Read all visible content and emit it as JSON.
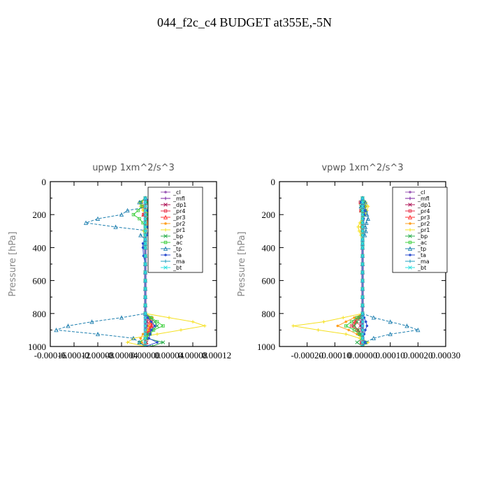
{
  "title": "044_f2c_c4  BUDGET at355E,-5N",
  "legend_entries": [
    "_cl",
    "_mfl",
    "_dp1",
    "_pr4",
    "_pr3",
    "_pr2",
    "_pr1",
    "_bp",
    "_ac",
    "_tp",
    "_ta",
    "_ma",
    "_bt"
  ],
  "colors": {
    "_cl": "#9b59b6",
    "_mfl": "#7a1fa2",
    "_dp1": "#b0185a",
    "_pr4": "#e8324a",
    "_pr3": "#ff3030",
    "_pr2": "#ffa020",
    "_pr1": "#f5e020",
    "_bp": "#2fb050",
    "_ac": "#40d040",
    "_tp": "#2080b0",
    "_ta": "#3050d0",
    "_ma": "#20a0c0",
    "_bt": "#30e0e0"
  },
  "chart_data": [
    {
      "type": "line",
      "title": "upwp   1xm^2/s^3",
      "ylabel": "Pressure [hPa]",
      "xlim": [
        -0.00016,
        0.00012
      ],
      "ylim": [
        1000,
        0
      ],
      "xticks": [
        "-0.00016",
        "-0.00012",
        "-0.00008",
        "-0.00004",
        "0.00000",
        "0.00004",
        "0.00008",
        "0.00012"
      ],
      "yticks": [
        "0",
        "200",
        "400",
        "600",
        "800",
        "1000"
      ],
      "legend": "top-right",
      "pressure": [
        100,
        125,
        150,
        175,
        200,
        225,
        250,
        275,
        300,
        325,
        350,
        375,
        400,
        450,
        500,
        550,
        600,
        650,
        700,
        750,
        800,
        825,
        850,
        875,
        900,
        925,
        950,
        975,
        1000
      ],
      "series": [
        {
          "name": "_cl",
          "values": [
            0,
            0,
            0,
            0,
            0,
            0,
            0,
            0,
            0,
            0,
            0,
            0,
            0,
            0,
            0,
            0,
            0,
            0,
            0,
            0,
            0,
            0,
            0,
            0,
            0,
            0,
            0,
            0,
            0
          ]
        },
        {
          "name": "_mfl",
          "values": [
            0,
            0,
            0,
            0,
            0,
            0,
            0,
            0,
            0,
            0,
            0,
            0,
            0,
            0,
            0,
            0,
            0,
            0,
            0,
            0,
            0,
            0,
            0,
            0,
            0,
            0,
            0,
            0,
            0
          ]
        },
        {
          "name": "_dp1",
          "values": [
            0,
            4e-06,
            -4e-06,
            3e-06,
            -2e-06,
            2e-06,
            0,
            0,
            0,
            0,
            0,
            0,
            0,
            0,
            0,
            0,
            0,
            0,
            0,
            0,
            0,
            4e-06,
            3e-06,
            4e-06,
            2e-06,
            3e-06,
            0,
            2e-06,
            0
          ]
        },
        {
          "name": "_pr4",
          "values": [
            0,
            8e-06,
            -4e-06,
            6e-06,
            -3e-06,
            4e-06,
            5e-06,
            2e-06,
            0,
            0,
            0,
            0,
            0,
            0,
            0,
            0,
            0,
            0,
            0,
            0,
            0,
            8e-06,
            1e-05,
            1.2e-05,
            6e-06,
            4e-06,
            2e-06,
            1e-06,
            0
          ]
        },
        {
          "name": "_pr3",
          "values": [
            0,
            6e-06,
            -3e-06,
            4e-06,
            -3e-06,
            3e-06,
            4e-06,
            2e-06,
            0,
            0,
            0,
            0,
            0,
            0,
            0,
            0,
            0,
            0,
            0,
            0,
            0,
            6e-06,
            8e-06,
            1e-05,
            5e-06,
            3e-06,
            2e-06,
            1e-06,
            0
          ]
        },
        {
          "name": "_pr2",
          "values": [
            0,
            -6e-06,
            -4e-06,
            -2e-06,
            6e-06,
            8e-06,
            4e-06,
            2e-06,
            0,
            0,
            0,
            0,
            0,
            0,
            0,
            0,
            0,
            0,
            0,
            0,
            0,
            1.2e-05,
            1e-05,
            6e-06,
            4e-06,
            -4e-06,
            -8e-06,
            -6e-06,
            0
          ]
        },
        {
          "name": "_pr1",
          "values": [
            0,
            -1e-05,
            -8e-06,
            -4e-06,
            1e-05,
            1.6e-05,
            1e-05,
            4e-06,
            -3e-06,
            0,
            0,
            0,
            0,
            0,
            0,
            0,
            0,
            0,
            0,
            0,
            0,
            4e-05,
            8e-05,
            0.0001,
            6e-05,
            2e-05,
            -2e-05,
            -3e-05,
            0
          ]
        },
        {
          "name": "_bp",
          "values": [
            0,
            3e-06,
            6e-06,
            2e-06,
            4e-06,
            2e-06,
            0,
            0,
            0,
            0,
            0,
            0,
            0,
            0,
            0,
            0,
            0,
            0,
            0,
            0,
            0,
            8e-06,
            1.6e-05,
            2e-05,
            1.2e-05,
            4e-06,
            2e-06,
            3e-05,
            1e-05
          ]
        },
        {
          "name": "_ac",
          "values": [
            0,
            -8e-06,
            -6e-06,
            -1.2e-05,
            -2e-05,
            -1e-05,
            -4e-06,
            0,
            0,
            0,
            0,
            0,
            0,
            0,
            0,
            0,
            0,
            0,
            0,
            0,
            0,
            1e-05,
            2e-05,
            3e-05,
            1.4e-05,
            8e-06,
            0,
            -1e-05,
            0
          ]
        },
        {
          "name": "_tp",
          "values": [
            0,
            -1e-05,
            1e-05,
            -3e-05,
            -4e-05,
            -8e-05,
            -0.0001,
            -5e-05,
            1e-05,
            -8e-06,
            0,
            0,
            0,
            0,
            0,
            0,
            0,
            0,
            0,
            0,
            0,
            -4e-05,
            -9e-05,
            -0.00013,
            -0.00015,
            -8e-05,
            -2e-05,
            -1e-05,
            0
          ]
        },
        {
          "name": "_ta",
          "values": [
            0,
            1.2e-05,
            6e-06,
            4e-06,
            8e-06,
            1e-05,
            6e-06,
            4e-06,
            6e-06,
            2e-06,
            0,
            -4e-06,
            -4e-06,
            -3e-06,
            0,
            0,
            0,
            0,
            0,
            0,
            0,
            4e-06,
            1e-05,
            1.6e-05,
            1e-05,
            8e-06,
            6e-06,
            2e-05,
            0
          ]
        },
        {
          "name": "_ma",
          "values": [
            0,
            0,
            0,
            0,
            0,
            0,
            0,
            0,
            0,
            0,
            0,
            0,
            0,
            0,
            0,
            0,
            0,
            0,
            0,
            0,
            0,
            0,
            0,
            0,
            0,
            0,
            0,
            0,
            0
          ]
        },
        {
          "name": "_bt",
          "values": [
            0,
            0,
            0,
            0,
            0,
            0,
            0,
            0,
            0,
            0,
            0,
            0,
            0,
            0,
            0,
            0,
            0,
            0,
            0,
            0,
            0,
            0,
            0,
            0,
            0,
            0,
            0,
            0,
            0
          ]
        }
      ]
    },
    {
      "type": "line",
      "title": "vpwp   1xm^2/s^3",
      "ylabel": "Pressure [hPa]",
      "xlim": [
        -0.0003,
        0.0003
      ],
      "ylim": [
        1000,
        0
      ],
      "xticks": [
        "-0.00020",
        "-0.00010",
        "0.00000",
        "0.00010",
        "0.00020",
        "0.00030"
      ],
      "yticks": [
        "0",
        "200",
        "400",
        "600",
        "800",
        "1000"
      ],
      "legend": "top-right",
      "pressure": [
        100,
        125,
        150,
        175,
        200,
        225,
        250,
        275,
        300,
        325,
        350,
        375,
        400,
        450,
        500,
        550,
        600,
        650,
        700,
        750,
        800,
        825,
        850,
        875,
        900,
        925,
        950,
        975,
        1000
      ],
      "series": [
        {
          "name": "_cl",
          "values": [
            0,
            0,
            0,
            0,
            0,
            0,
            0,
            0,
            0,
            0,
            0,
            0,
            0,
            0,
            0,
            0,
            0,
            0,
            0,
            0,
            0,
            0,
            0,
            0,
            0,
            0,
            0,
            0,
            0
          ]
        },
        {
          "name": "_mfl",
          "values": [
            0,
            0,
            0,
            0,
            0,
            0,
            0,
            0,
            0,
            0,
            0,
            0,
            0,
            0,
            0,
            0,
            0,
            0,
            0,
            0,
            0,
            0,
            0,
            0,
            0,
            0,
            0,
            0,
            0
          ]
        },
        {
          "name": "_dp1",
          "values": [
            0,
            -5e-06,
            4e-06,
            -4e-06,
            3e-06,
            0,
            0,
            0,
            0,
            0,
            0,
            0,
            0,
            0,
            0,
            0,
            0,
            0,
            0,
            0,
            0,
            -4e-06,
            -6e-06,
            -8e-06,
            -4e-06,
            -2e-06,
            0,
            -2e-06,
            0
          ]
        },
        {
          "name": "_pr4",
          "values": [
            0,
            -8e-06,
            6e-06,
            -6e-06,
            4e-06,
            0,
            0,
            0,
            0,
            0,
            0,
            0,
            0,
            0,
            0,
            0,
            0,
            0,
            0,
            0,
            0,
            -2e-05,
            -3e-05,
            -4e-05,
            -2e-05,
            -1e-05,
            0,
            -4e-06,
            0
          ]
        },
        {
          "name": "_pr3",
          "values": [
            0,
            -6e-06,
            5e-06,
            -5e-06,
            3e-06,
            0,
            0,
            0,
            0,
            0,
            0,
            0,
            0,
            0,
            0,
            0,
            0,
            0,
            0,
            0,
            0,
            -1.6e-05,
            -2.4e-05,
            -3e-05,
            -1.6e-05,
            -8e-06,
            0,
            -3e-06,
            0
          ]
        },
        {
          "name": "_pr2",
          "values": [
            0,
            8e-06,
            1.2e-05,
            1e-05,
            6e-06,
            0,
            -4e-06,
            -6e-06,
            -4e-06,
            0,
            0,
            0,
            0,
            0,
            0,
            0,
            0,
            0,
            0,
            0,
            0,
            -3e-05,
            -6e-05,
            -9e-05,
            -5e-05,
            -2e-05,
            0,
            1e-05,
            0
          ]
        },
        {
          "name": "_pr1",
          "values": [
            0,
            1.2e-05,
            2e-05,
            1.6e-05,
            1e-05,
            0,
            -1e-05,
            -1.6e-05,
            -1.2e-05,
            -6e-06,
            0,
            0,
            0,
            0,
            0,
            0,
            0,
            0,
            0,
            0,
            0,
            -7e-05,
            -0.00014,
            -0.00025,
            -0.00016,
            -6e-05,
            -1e-05,
            2e-05,
            0
          ]
        },
        {
          "name": "_bp",
          "values": [
            0,
            -4e-06,
            -6e-06,
            -4e-06,
            0,
            0,
            0,
            0,
            0,
            0,
            0,
            0,
            0,
            0,
            0,
            0,
            0,
            0,
            0,
            0,
            0,
            -1e-05,
            -2e-05,
            -3e-05,
            -1.6e-05,
            -8e-06,
            0,
            -2e-05,
            0
          ]
        },
        {
          "name": "_ac",
          "values": [
            0,
            4e-06,
            8e-06,
            6e-06,
            4e-06,
            0,
            0,
            0,
            0,
            0,
            0,
            0,
            0,
            0,
            0,
            0,
            0,
            0,
            0,
            0,
            0,
            -2e-05,
            -4e-05,
            -6e-05,
            -3e-05,
            -1.2e-05,
            0,
            1e-05,
            0
          ]
        },
        {
          "name": "_tp",
          "values": [
            0,
            1e-05,
            -6e-06,
            1.2e-05,
            1.6e-05,
            2e-05,
            1.4e-05,
            1e-05,
            1.2e-05,
            8e-06,
            0,
            0,
            0,
            0,
            0,
            0,
            0,
            0,
            0,
            0,
            0,
            4e-05,
            0.0001,
            0.00016,
            0.0002,
            0.0001,
            4e-05,
            1e-05,
            0
          ]
        },
        {
          "name": "_ta",
          "values": [
            0,
            -6e-06,
            4e-06,
            8e-06,
            6e-06,
            4e-06,
            2e-06,
            0,
            0,
            0,
            0,
            0,
            0,
            0,
            0,
            0,
            0,
            0,
            0,
            0,
            0,
            6e-06,
            1.2e-05,
            1.6e-05,
            1e-05,
            6e-06,
            2e-06,
            8e-06,
            0
          ]
        },
        {
          "name": "_ma",
          "values": [
            0,
            0,
            0,
            0,
            0,
            0,
            0,
            0,
            0,
            0,
            0,
            0,
            0,
            0,
            0,
            0,
            0,
            0,
            0,
            0,
            0,
            0,
            0,
            0,
            0,
            0,
            0,
            0,
            0
          ]
        },
        {
          "name": "_bt",
          "values": [
            0,
            0,
            0,
            0,
            0,
            0,
            0,
            0,
            0,
            0,
            0,
            0,
            0,
            0,
            0,
            0,
            0,
            0,
            0,
            0,
            0,
            0,
            0,
            0,
            0,
            0,
            0,
            0,
            0
          ]
        }
      ]
    }
  ]
}
